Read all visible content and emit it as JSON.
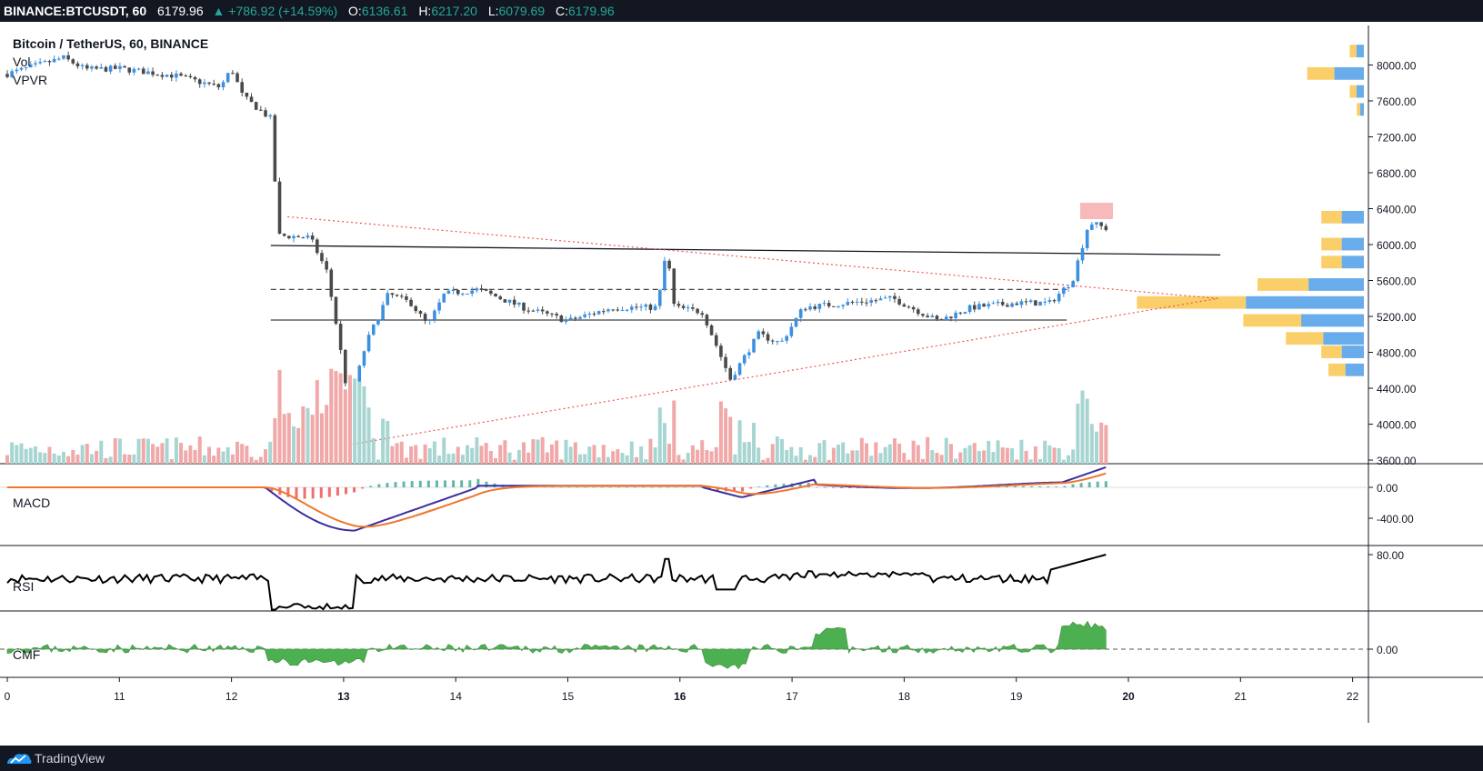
{
  "header": {
    "symbol": "BINANCE:BTCUSDT, 60",
    "last": "6179.96",
    "change": "▲ +786.92 (+14.59%)",
    "o_label": "O:",
    "o_value": "6136.61",
    "h_label": "H:",
    "h_value": "6217.20",
    "l_label": "L:",
    "l_value": "6079.69",
    "c_label": "C:",
    "c_value": "6179.96"
  },
  "overlay": {
    "title": "Bitcoin / TetherUS, 60, BINANCE",
    "vol": "Vol",
    "vpvr": "VPVR"
  },
  "panes": {
    "macd": "MACD",
    "rsi": "RSI",
    "cmf": "CMF"
  },
  "footer": {
    "brand": "TradingView",
    "logo_icon": "tradingview-logo-icon"
  },
  "colors": {
    "up": "#3d8fe0",
    "down": "#4a4a4a",
    "vol_up": "#a7d6d2",
    "vol_down": "#f0a8a8",
    "macd": "#3b2fa0",
    "signal": "#f0762c",
    "hist_up": "#2e9e8f",
    "hist_down": "#ef3c3c",
    "rsi": "#000000",
    "cmf": "#4caf50",
    "trend": "#ef5350",
    "vp_yellow": "#f9c74f",
    "vp_blue": "#4f9ee8"
  },
  "chart_data": {
    "type": "candlestick",
    "title": "Bitcoin / TetherUS, 60, BINANCE",
    "x_axis": {
      "tick_labels": [
        "0",
        "11",
        "12",
        "13",
        "14",
        "15",
        "16",
        "17",
        "18",
        "19",
        "20",
        "21",
        "22"
      ]
    },
    "price_axis": {
      "tick_labels": [
        "8000.00",
        "7600.00",
        "7200.00",
        "6800.00",
        "6400.00",
        "6000.00",
        "5600.00",
        "5200.00",
        "4800.00",
        "4400.00",
        "4000.00",
        "3600.00"
      ],
      "range": [
        3560,
        8440
      ]
    },
    "price_path": [
      {
        "day": 10.0,
        "price": 7900
      },
      {
        "day": 10.5,
        "price": 8080
      },
      {
        "day": 10.7,
        "price": 7950
      },
      {
        "day": 11.0,
        "price": 7960
      },
      {
        "day": 11.5,
        "price": 7880
      },
      {
        "day": 11.9,
        "price": 7750
      },
      {
        "day": 12.0,
        "price": 7960
      },
      {
        "day": 12.1,
        "price": 7650
      },
      {
        "day": 12.35,
        "price": 7400
      },
      {
        "day": 12.42,
        "price": 6100
      },
      {
        "day": 12.7,
        "price": 6080
      },
      {
        "day": 12.85,
        "price": 5700
      },
      {
        "day": 12.95,
        "price": 5000
      },
      {
        "day": 13.05,
        "price": 4200
      },
      {
        "day": 13.2,
        "price": 4900
      },
      {
        "day": 13.4,
        "price": 5450
      },
      {
        "day": 13.6,
        "price": 5350
      },
      {
        "day": 13.75,
        "price": 5100
      },
      {
        "day": 13.9,
        "price": 5450
      },
      {
        "day": 14.2,
        "price": 5500
      },
      {
        "day": 14.6,
        "price": 5300
      },
      {
        "day": 15.0,
        "price": 5150
      },
      {
        "day": 15.4,
        "price": 5300
      },
      {
        "day": 15.8,
        "price": 5300
      },
      {
        "day": 15.88,
        "price": 5950
      },
      {
        "day": 15.95,
        "price": 5300
      },
      {
        "day": 16.2,
        "price": 5250
      },
      {
        "day": 16.45,
        "price": 4500
      },
      {
        "day": 16.7,
        "price": 5000
      },
      {
        "day": 16.9,
        "price": 4900
      },
      {
        "day": 17.1,
        "price": 5300
      },
      {
        "day": 17.5,
        "price": 5350
      },
      {
        "day": 17.9,
        "price": 5400
      },
      {
        "day": 18.3,
        "price": 5150
      },
      {
        "day": 18.6,
        "price": 5300
      },
      {
        "day": 19.0,
        "price": 5350
      },
      {
        "day": 19.3,
        "price": 5350
      },
      {
        "day": 19.5,
        "price": 5600
      },
      {
        "day": 19.65,
        "price": 6250
      },
      {
        "day": 19.8,
        "price": 6180
      }
    ],
    "lines": {
      "resistance": 5990,
      "dashed_mid": 5500,
      "support": 5160,
      "triangle_top": {
        "from": {
          "day": 12.5,
          "price": 6310
        },
        "to": {
          "day": 20.8,
          "price": 5400
        }
      },
      "triangle_bottom": {
        "from": {
          "day": 13.0,
          "price": 3760
        },
        "to": {
          "day": 20.8,
          "price": 5400
        }
      }
    },
    "volume_profile": [
      {
        "price": 8150,
        "total": 0.02
      },
      {
        "price": 7900,
        "total": 0.08
      },
      {
        "price": 7700,
        "total": 0.02
      },
      {
        "price": 7500,
        "total": 0.01
      },
      {
        "price": 6300,
        "total": 0.06
      },
      {
        "price": 6000,
        "total": 0.06
      },
      {
        "price": 5800,
        "total": 0.06
      },
      {
        "price": 5550,
        "total": 0.15
      },
      {
        "price": 5350,
        "total": 0.32
      },
      {
        "price": 5150,
        "total": 0.17
      },
      {
        "price": 4950,
        "total": 0.11
      },
      {
        "price": 4800,
        "total": 0.06
      },
      {
        "price": 4600,
        "total": 0.05
      }
    ],
    "macd": {
      "tick_labels": [
        "0.00",
        "-400.00"
      ]
    },
    "rsi": {
      "tick_labels": [
        "80.00"
      ]
    },
    "cmf": {
      "tick_labels": [
        "0.00"
      ]
    }
  }
}
